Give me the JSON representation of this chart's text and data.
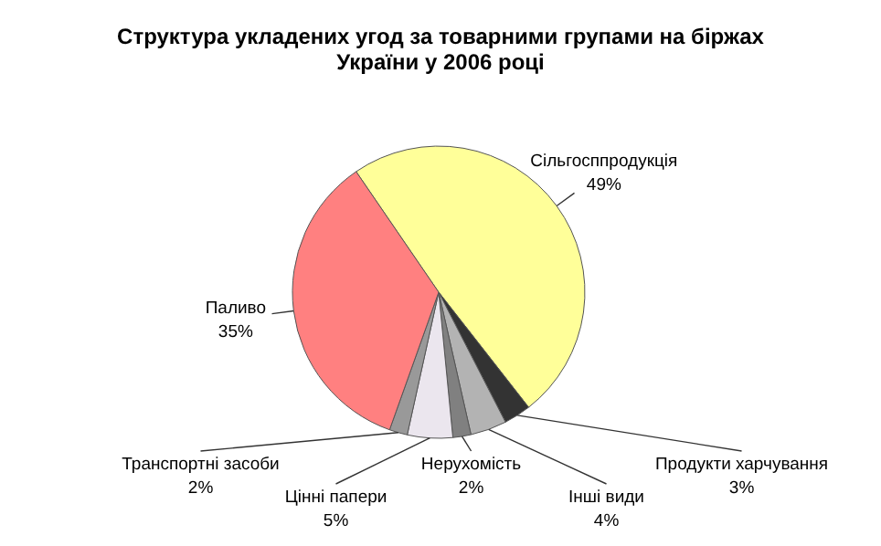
{
  "chart_data": {
    "type": "pie",
    "title": "Структура укладених угод за товарними групами на біржах України у 2006 році",
    "categories": [
      "Сільгосппродукція",
      "Продукти харчування",
      "Інші види",
      "Нерухомість",
      "Цінні папери",
      "Транспортні засоби",
      "Паливо"
    ],
    "values": [
      49,
      3,
      4,
      2,
      5,
      2,
      35
    ],
    "value_labels": [
      "49%",
      "3%",
      "4%",
      "2%",
      "5%",
      "2%",
      "35%"
    ],
    "colors": [
      "#ffff99",
      "#333333",
      "#b3b3b3",
      "#808080",
      "#ebe6ee",
      "#999999",
      "#ff8080"
    ]
  }
}
